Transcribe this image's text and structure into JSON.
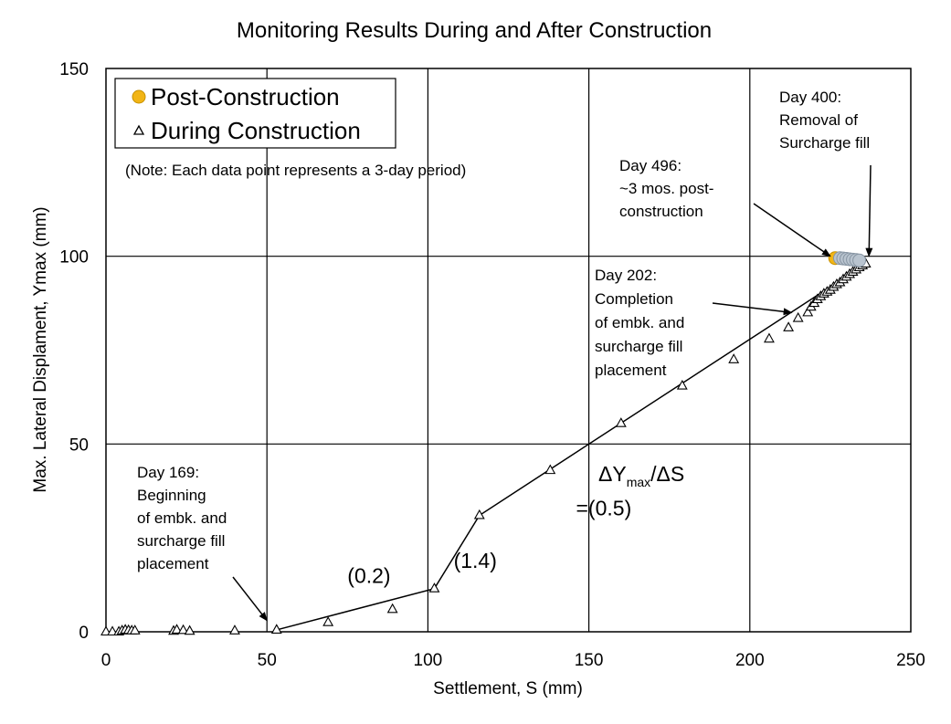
{
  "chart_data": {
    "type": "scatter",
    "title": "Monitoring Results During and After Construction",
    "xlabel": "Settlement, S (mm)",
    "ylabel": "Max. Lateral Displament, Ymax (mm)",
    "xlim": [
      0,
      250
    ],
    "ylim": [
      0,
      150
    ],
    "xticks": [
      0,
      50,
      100,
      150,
      200,
      250
    ],
    "yticks": [
      0,
      50,
      100,
      150
    ],
    "grid": true,
    "legend_position": "top-left",
    "note": "(Note: Each data point represents a 3-day period)",
    "series": [
      {
        "name": "Post-Construction",
        "marker": "circle",
        "color": "#f2b515",
        "x": [
          226.5,
          228,
          229,
          230,
          231,
          232,
          233,
          234
        ],
        "y": [
          99.5,
          99.5,
          99.4,
          99.3,
          99.2,
          99.1,
          99.0,
          98.9
        ]
      },
      {
        "name": "During Construction",
        "marker": "triangle",
        "color": "#000000",
        "x": [
          0,
          2,
          4,
          5,
          6,
          7,
          8,
          9,
          21,
          22,
          24,
          26,
          40,
          53,
          69,
          89,
          102,
          116,
          138,
          160,
          179,
          195,
          206,
          212,
          215,
          218,
          219,
          220,
          221,
          222,
          223,
          224,
          225,
          226,
          227,
          228,
          229,
          230,
          231,
          232,
          233,
          234,
          235,
          236
        ],
        "y": [
          0,
          0,
          0,
          0.3,
          0.5,
          0.4,
          0.3,
          0.3,
          0.2,
          0.5,
          0.4,
          0.2,
          0.3,
          0.5,
          2.5,
          6,
          11.5,
          31,
          43,
          55.5,
          65.5,
          72.5,
          78,
          81,
          83.5,
          85,
          86.5,
          87.5,
          88.5,
          89.3,
          90,
          90.5,
          91,
          91.8,
          92.5,
          93,
          93.8,
          94.5,
          95.2,
          95.8,
          96.4,
          97,
          97.5,
          98
        ]
      }
    ],
    "trend_line": {
      "x": [
        53,
        102,
        116,
        236
      ],
      "y": [
        0.5,
        11.5,
        31,
        98
      ]
    },
    "slope_labels": [
      {
        "text": "(0.2)",
        "x": 75,
        "y": 13
      },
      {
        "text": "(1.4)",
        "x": 108,
        "y": 17
      },
      {
        "text": "=(0.5)",
        "x": 146,
        "y": 31
      }
    ],
    "slope_formula": {
      "main": "ΔY",
      "sub": "max",
      "rest": "/ΔS"
    },
    "annotations": [
      {
        "lines": [
          "Day 169:",
          "Beginning",
          "of embk. and",
          "surcharge fill",
          "placement"
        ],
        "arrow_to": [
          50,
          3
        ]
      },
      {
        "lines": [
          "Day 202:",
          "Completion",
          "of embk. and",
          "surcharge fill",
          "placement"
        ],
        "arrow_to": [
          213,
          85
        ]
      },
      {
        "lines": [
          "Day 496:",
          "~3 mos. post-",
          "construction"
        ],
        "arrow_to": [
          225,
          100
        ]
      },
      {
        "lines": [
          "Day 400:",
          "Removal of",
          "Surcharge  fill"
        ],
        "arrow_to": [
          237,
          100
        ]
      }
    ]
  }
}
